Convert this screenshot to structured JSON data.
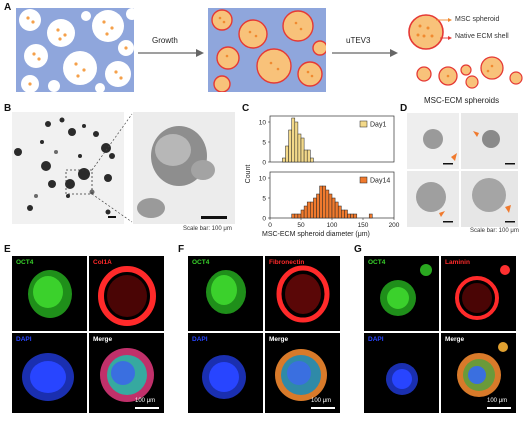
{
  "panels": {
    "A": "A",
    "B": "B",
    "C": "C",
    "D": "D",
    "E": "E",
    "F": "F",
    "G": "G"
  },
  "panel_a": {
    "step1": "Growth",
    "step2": "uTEV3",
    "legend_spheroid": "MSC spheroid",
    "legend_shell": "Native ECM shell",
    "result_label": "MSC-ECM spheroids"
  },
  "panel_b": {
    "scale_bar": "Scale bar: 100 μm"
  },
  "panel_d": {
    "scale_bar": "Scale bar: 100 μm"
  },
  "chart_data": {
    "type": "bar",
    "xlabel": "MSC-ECM spheroid diameter (μm)",
    "ylabel": "Count",
    "xticks": [
      "0",
      "50",
      "100",
      "150",
      "200"
    ],
    "xlim": [
      0,
      200
    ],
    "series": [
      {
        "name": "Day1",
        "color": "#f3d98a",
        "ylim": [
          0,
          10
        ],
        "yticks": [
          "0",
          "5",
          "10"
        ],
        "bin_width": 5,
        "bins_start": [
          20,
          25,
          30,
          35,
          40,
          45,
          50,
          55,
          60,
          65
        ],
        "values": [
          1,
          4,
          8,
          11,
          10,
          7,
          6,
          3,
          3,
          1
        ]
      },
      {
        "name": "Day14",
        "color": "#f07a2e",
        "ylim": [
          0,
          10
        ],
        "yticks": [
          "0",
          "5",
          "10"
        ],
        "bin_width": 5,
        "bins_start": [
          35,
          40,
          45,
          50,
          55,
          60,
          65,
          70,
          75,
          80,
          85,
          90,
          95,
          100,
          105,
          110,
          115,
          120,
          125,
          130,
          135,
          160
        ],
        "values": [
          1,
          1,
          1,
          2,
          3,
          4,
          4,
          5,
          6,
          8,
          8,
          7,
          6,
          5,
          4,
          3,
          2,
          2,
          1,
          1,
          1,
          1
        ]
      }
    ]
  },
  "panel_e": {
    "ch1": "OCT4",
    "ch2": "Col1A",
    "ch3": "DAPI",
    "ch4": "Merge",
    "scale_bar": "100 μm"
  },
  "panel_f": {
    "ch1": "OCT4",
    "ch2": "Fibronectin",
    "ch3": "DAPI",
    "ch4": "Merge",
    "scale_bar": "100 μm"
  },
  "panel_g": {
    "ch1": "OCT4",
    "ch2": "Laminin",
    "ch3": "DAPI",
    "ch4": "Merge",
    "scale_bar": "100 μm"
  },
  "colors": {
    "hydrogel": "#8fa6dc",
    "spheroid": "#f5a04a",
    "shell": "#e53935",
    "green": "#38d12a",
    "red": "#ff2a2a",
    "blue": "#2845ff"
  }
}
